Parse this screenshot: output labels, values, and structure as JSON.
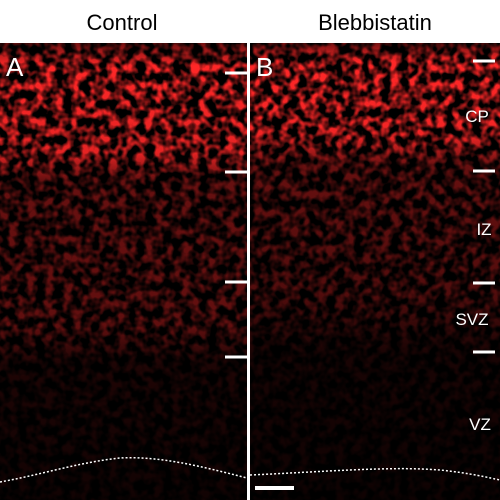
{
  "header": {
    "columns": [
      "Control",
      "Blebbistatin"
    ]
  },
  "panels": [
    {
      "label": "A"
    },
    {
      "label": "B"
    }
  ],
  "zones": [
    "CP",
    "IZ",
    "SVZ",
    "VZ"
  ]
}
